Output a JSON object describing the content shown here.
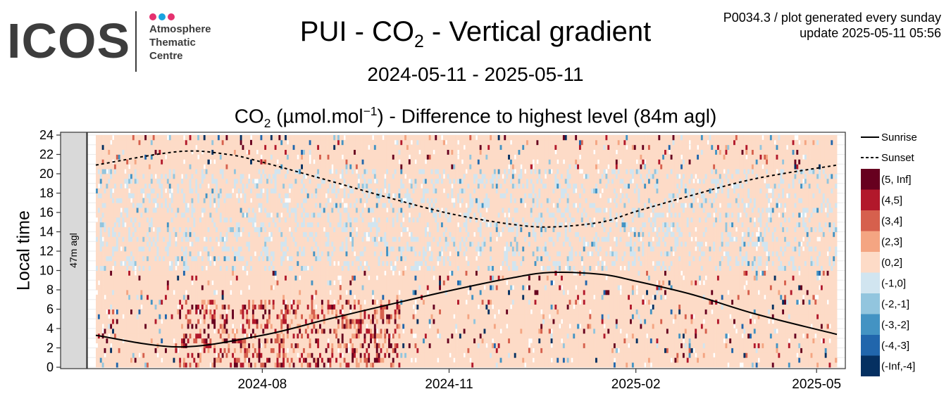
{
  "logo": {
    "wordmark": "ICOS",
    "subtitle_lines": [
      "Atmosphere",
      "Thematic",
      "Centre"
    ],
    "dot_colors": [
      "#e5316f",
      "#1aa3e0",
      "#e5316f"
    ],
    "text_color": "#3d3d3d"
  },
  "header": {
    "title_pre": "PUI - CO",
    "title_sub": "2",
    "title_post": " - Vertical gradient",
    "meta_line1": "P0034.3 / plot generated every sunday",
    "meta_line2": "update  2025-05-11 05:56",
    "date_range": "2024-05-11 - 2025-05-11",
    "subtitle_pre": "CO",
    "subtitle_sub": "2",
    "subtitle_unit_open": " (µmol.mol",
    "subtitle_sup": "−1",
    "subtitle_post": ") - Difference to highest level (84m agl)"
  },
  "chart_data": {
    "type": "heatmap",
    "title": "PUI - CO2 - Vertical gradient",
    "subtitle": "CO2 (µmol.mol−1) - Difference to highest level (84m agl)",
    "ylabel": "Local time",
    "xlabel": "",
    "facet_label": "47m agl",
    "x_range": [
      "2024-05-11",
      "2025-05-11"
    ],
    "ylim": [
      0,
      24
    ],
    "y_ticks": [
      0,
      2,
      4,
      6,
      8,
      10,
      12,
      14,
      16,
      18,
      20,
      22,
      24
    ],
    "x_ticks": [
      {
        "date": "2024-08-01",
        "label": "2024-08"
      },
      {
        "date": "2024-11-01",
        "label": "2024-11"
      },
      {
        "date": "2025-02-01",
        "label": "2025-02"
      },
      {
        "date": "2025-05-01",
        "label": "2025-05"
      }
    ],
    "grid": true,
    "legend_position": "right",
    "lines": [
      {
        "name": "Sunrise",
        "style": "solid",
        "points": [
          [
            "2024-05-11",
            3.3
          ],
          [
            "2024-06-21",
            2.1
          ],
          [
            "2024-08-01",
            3.3
          ],
          [
            "2024-09-01",
            4.9
          ],
          [
            "2024-10-01",
            6.4
          ],
          [
            "2024-11-01",
            7.9
          ],
          [
            "2024-12-01",
            9.2
          ],
          [
            "2024-12-21",
            9.8
          ],
          [
            "2025-01-15",
            9.6
          ],
          [
            "2025-02-01",
            8.9
          ],
          [
            "2025-03-01",
            7.5
          ],
          [
            "2025-04-01",
            5.5
          ],
          [
            "2025-05-11",
            3.4
          ]
        ]
      },
      {
        "name": "Sunset",
        "style": "dashed",
        "points": [
          [
            "2024-05-11",
            20.9
          ],
          [
            "2024-06-21",
            22.3
          ],
          [
            "2024-07-15",
            22.0
          ],
          [
            "2024-08-01",
            21.2
          ],
          [
            "2024-09-01",
            19.4
          ],
          [
            "2024-10-01",
            17.6
          ],
          [
            "2024-11-01",
            15.9
          ],
          [
            "2024-12-01",
            14.8
          ],
          [
            "2024-12-21",
            14.5
          ],
          [
            "2025-01-15",
            15.0
          ],
          [
            "2025-02-01",
            16.1
          ],
          [
            "2025-03-01",
            17.8
          ],
          [
            "2025-04-01",
            19.5
          ],
          [
            "2025-05-11",
            20.9
          ]
        ]
      }
    ],
    "bins": [
      {
        "label": "(5, Inf]",
        "color": "#67001f"
      },
      {
        "label": "(4,5]",
        "color": "#b2182b"
      },
      {
        "label": "(3,4]",
        "color": "#d6604d"
      },
      {
        "label": "(2,3]",
        "color": "#f4a582"
      },
      {
        "label": "(0,2]",
        "color": "#fddbc7"
      },
      {
        "label": "(-1,0]",
        "color": "#d1e5f0"
      },
      {
        "label": "(-2,-1]",
        "color": "#92c5de"
      },
      {
        "label": "(-3,-2]",
        "color": "#4393c3"
      },
      {
        "label": "(-4,-3]",
        "color": "#2166ac"
      },
      {
        "label": "(-Inf,-4]",
        "color": "#053061"
      }
    ],
    "dominant_bin": "(0,2]"
  }
}
